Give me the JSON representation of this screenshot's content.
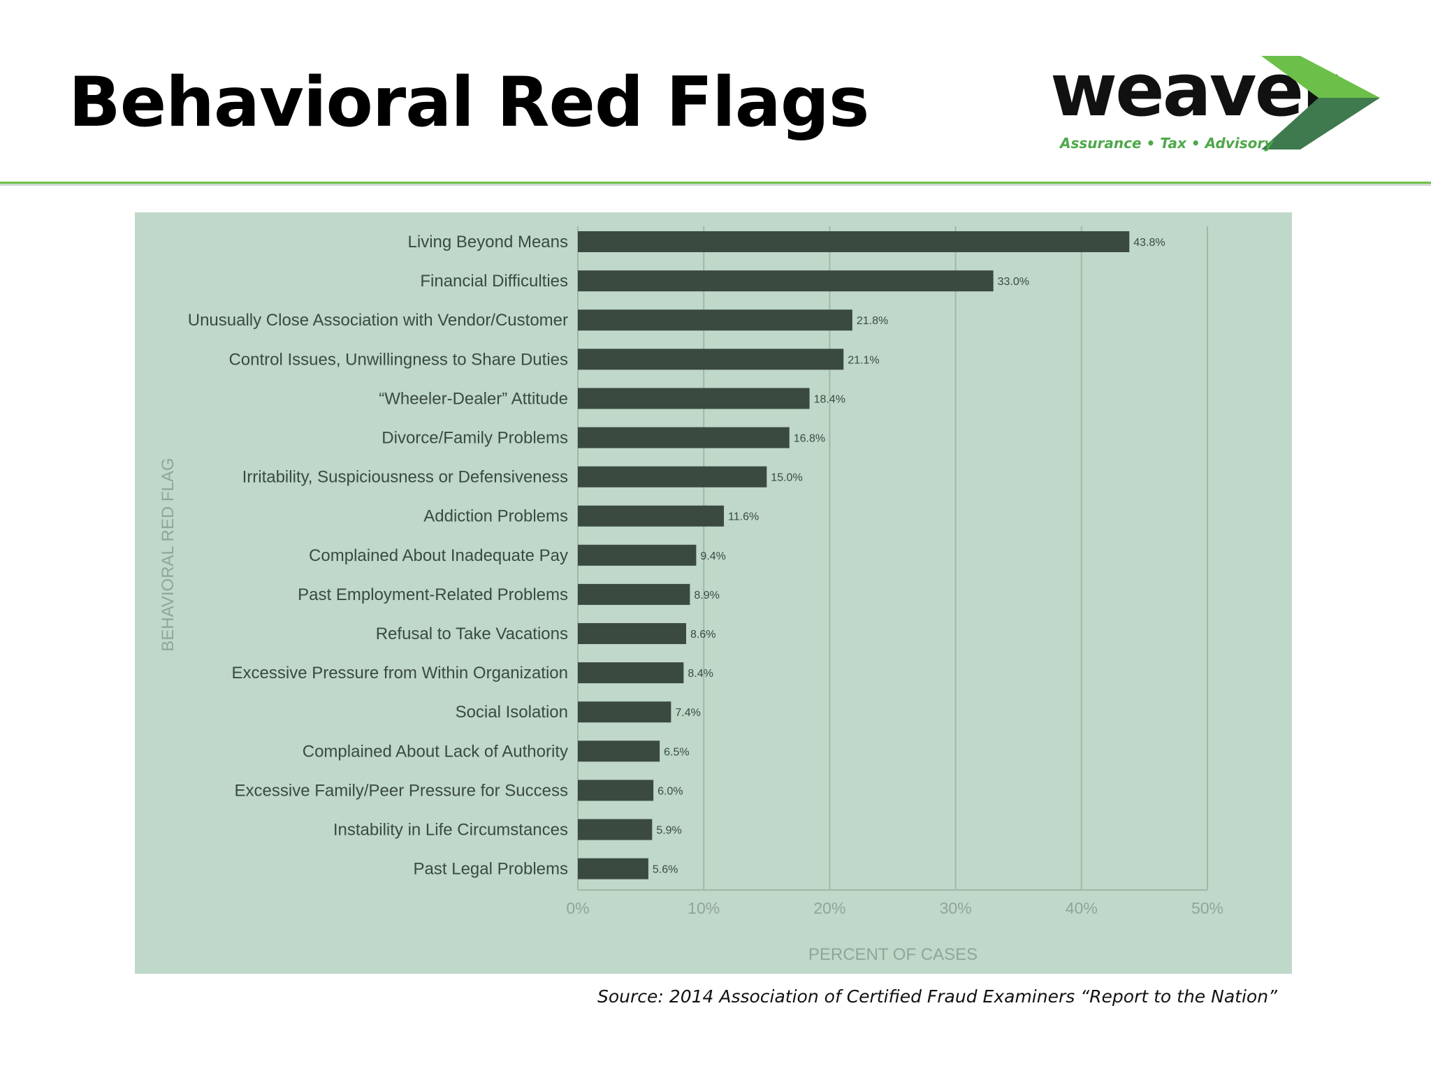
{
  "slide": {
    "title": "Behavioral Red Flags",
    "source": "Source:  2014 Association of Certified Fraud Examiners “Report to the Nation”"
  },
  "logo": {
    "wordmark": "weaver",
    "tagline": "Assurance • Tax • Advisory",
    "colors": {
      "light_green": "#6cc04a",
      "dark_green": "#3e7a4e"
    }
  },
  "colors": {
    "panel_background": "#bfd8c9",
    "bar": "#3b4a40",
    "gridline": "#9fb8a8",
    "axis_label": "#8fa598",
    "accent_rule": "#6cc04a"
  },
  "chart_data": {
    "type": "bar",
    "orientation": "horizontal",
    "xlabel": "PERCENT OF CASES",
    "ylabel": "BEHAVIORAL RED FLAG",
    "xlim": [
      0,
      50
    ],
    "xticks": [
      "0%",
      "10%",
      "20%",
      "30%",
      "40%",
      "50%"
    ],
    "grid": true,
    "categories": [
      "Living Beyond Means",
      "Financial Difficulties",
      "Unusually Close Association with Vendor/Customer",
      "Control Issues, Unwillingness to Share Duties",
      "“Wheeler-Dealer” Attitude",
      "Divorce/Family Problems",
      "Irritability, Suspiciousness or Defensiveness",
      "Addiction Problems",
      "Complained About Inadequate Pay",
      "Past Employment-Related Problems",
      "Refusal to Take Vacations",
      "Excessive Pressure from Within Organization",
      "Social Isolation",
      "Complained About Lack of Authority",
      "Excessive Family/Peer Pressure for Success",
      "Instability in Life Circumstances",
      "Past Legal Problems"
    ],
    "values": [
      43.8,
      33.0,
      21.8,
      21.1,
      18.4,
      16.8,
      15.0,
      11.6,
      9.4,
      8.9,
      8.6,
      8.4,
      7.4,
      6.5,
      6.0,
      5.9,
      5.6
    ],
    "value_labels": [
      "43.8%",
      "33.0%",
      "21.8%",
      "21.1%",
      "18.4%",
      "16.8%",
      "15.0%",
      "11.6%",
      "9.4%",
      "8.9%",
      "8.6%",
      "8.4%",
      "7.4%",
      "6.5%",
      "6.0%",
      "5.9%",
      "5.6%"
    ]
  }
}
